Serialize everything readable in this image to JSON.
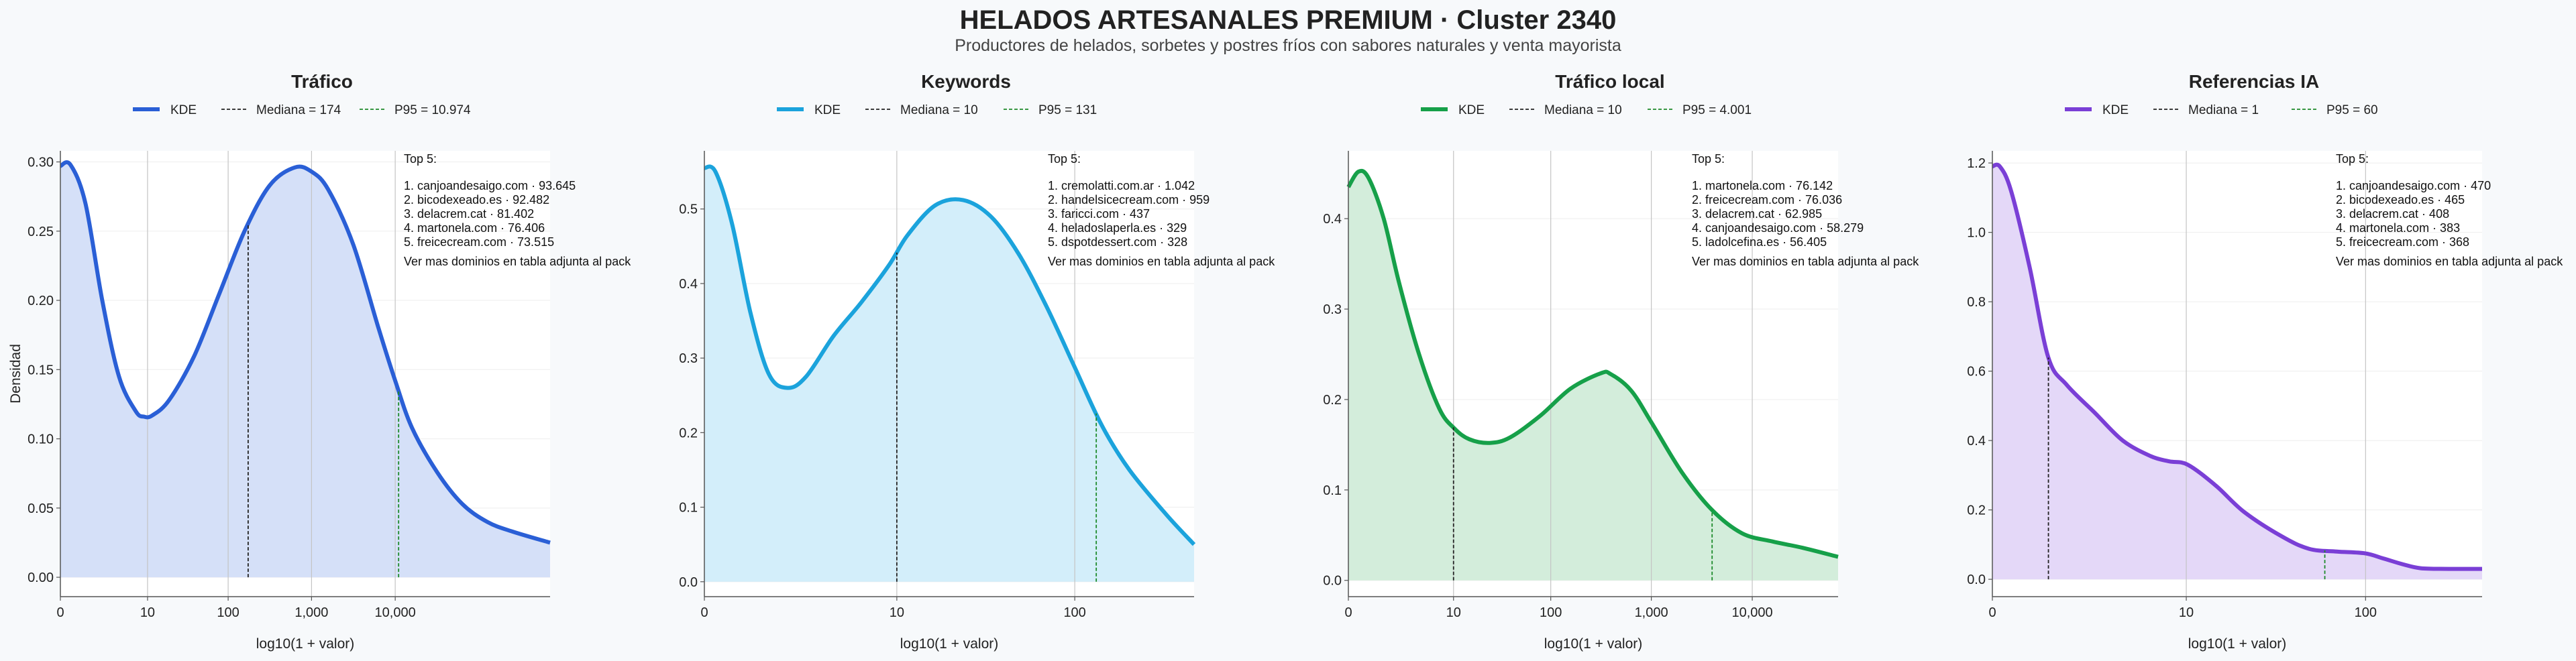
{
  "header": {
    "title": "HELADOS ARTESANALES PREMIUM · Cluster 2340",
    "subtitle": "Productores de helados, sorbetes y postres fríos con sabores naturales y venta mayorista"
  },
  "shared": {
    "x_axis_label": "log10(1 + valor)",
    "y_axis_label": "Densidad",
    "legend_kde": "KDE",
    "top5_title": "Top 5:",
    "footnote": "Ver mas dominios en tabla adjunta al pack"
  },
  "chart_data": [
    {
      "type": "area",
      "title": "Tráfico",
      "color": "#2a5fd6",
      "fill": "#d5e0f8",
      "median_label": "Mediana = 174",
      "p95_label": "P95 = 10.974",
      "median_value": 174,
      "p95_value": 10974,
      "xlim": [
        0,
        5.85
      ],
      "x_ticks": [
        {
          "v": 0,
          "label": "0"
        },
        {
          "v": 1.0414,
          "label": "10"
        },
        {
          "v": 2.0043,
          "label": "100"
        },
        {
          "v": 3.0004,
          "label": "1,000"
        },
        {
          "v": 4.0,
          "label": "10,000"
        }
      ],
      "ylim": [
        -0.014,
        0.308
      ],
      "y_ticks": [
        0.0,
        0.05,
        0.1,
        0.15,
        0.2,
        0.25,
        0.3
      ],
      "y_tick_labels": [
        "0.00",
        "0.05",
        "0.10",
        "0.15",
        "0.20",
        "0.25",
        "0.30"
      ],
      "x": [
        0,
        0.12,
        0.3,
        0.5,
        0.7,
        0.9,
        1.0,
        1.1,
        1.3,
        1.6,
        1.9,
        2.2,
        2.5,
        2.8,
        3.0,
        3.2,
        3.5,
        3.8,
        4.0,
        4.2,
        4.5,
        4.8,
        5.1,
        5.4,
        5.85
      ],
      "y": [
        0.297,
        0.298,
        0.27,
        0.2,
        0.145,
        0.12,
        0.116,
        0.117,
        0.128,
        0.16,
        0.205,
        0.25,
        0.283,
        0.296,
        0.293,
        0.28,
        0.24,
        0.18,
        0.142,
        0.108,
        0.076,
        0.053,
        0.04,
        0.033,
        0.025
      ],
      "top5": [
        "1. canjoandesaigo.com · 93.645",
        "2. bicodexeado.es · 92.482",
        "3. delacrem.cat · 81.402",
        "4. martonela.com · 76.406",
        "5. freicecream.com · 73.515"
      ]
    },
    {
      "type": "area",
      "title": "Keywords",
      "color": "#1ba3dc",
      "fill": "#d3eefa",
      "median_label": "Mediana = 10",
      "p95_label": "P95 = 131",
      "median_value": 10,
      "p95_value": 131,
      "xlim": [
        0,
        2.65
      ],
      "x_ticks": [
        {
          "v": 0,
          "label": "0"
        },
        {
          "v": 1.0414,
          "label": "10"
        },
        {
          "v": 2.0043,
          "label": "100"
        }
      ],
      "ylim": [
        -0.02,
        0.578
      ],
      "y_ticks": [
        0.0,
        0.1,
        0.2,
        0.3,
        0.4,
        0.5
      ],
      "y_tick_labels": [
        "0.0",
        "0.1",
        "0.2",
        "0.3",
        "0.4",
        "0.5"
      ],
      "x": [
        0,
        0.06,
        0.15,
        0.25,
        0.35,
        0.45,
        0.55,
        0.7,
        0.85,
        1.0,
        1.1,
        1.25,
        1.4,
        1.55,
        1.7,
        1.85,
        2.0,
        2.15,
        2.3,
        2.5,
        2.65
      ],
      "y": [
        0.555,
        0.55,
        0.48,
        0.36,
        0.278,
        0.26,
        0.275,
        0.33,
        0.375,
        0.425,
        0.465,
        0.505,
        0.512,
        0.49,
        0.44,
        0.37,
        0.29,
        0.21,
        0.15,
        0.09,
        0.05
      ],
      "top5": [
        "1. cremolatti.com.ar · 1.042",
        "2. handelsicecream.com · 959",
        "3. faricci.com · 437",
        "4. heladoslaperla.es · 329",
        "5. dspotdessert.com · 328"
      ]
    },
    {
      "type": "area",
      "title": "Tráfico local",
      "color": "#16a049",
      "fill": "#d3eddb",
      "median_label": "Mediana = 10",
      "p95_label": "P95 = 4.001",
      "median_value": 10,
      "p95_value": 4001,
      "xlim": [
        0,
        4.85
      ],
      "x_ticks": [
        {
          "v": 0,
          "label": "0"
        },
        {
          "v": 1.0414,
          "label": "10"
        },
        {
          "v": 2.0043,
          "label": "100"
        },
        {
          "v": 3.0004,
          "label": "1,000"
        },
        {
          "v": 4.0,
          "label": "10,000"
        }
      ],
      "ylim": [
        -0.018,
        0.475
      ],
      "y_ticks": [
        0.0,
        0.1,
        0.2,
        0.3,
        0.4
      ],
      "y_tick_labels": [
        "0.0",
        "0.1",
        "0.2",
        "0.3",
        "0.4"
      ],
      "x": [
        0,
        0.1,
        0.2,
        0.35,
        0.5,
        0.7,
        0.9,
        1.05,
        1.2,
        1.4,
        1.6,
        1.9,
        2.2,
        2.5,
        2.6,
        2.8,
        3.0,
        3.3,
        3.6,
        3.9,
        4.2,
        4.5,
        4.85
      ],
      "y": [
        0.435,
        0.452,
        0.445,
        0.4,
        0.33,
        0.25,
        0.19,
        0.168,
        0.156,
        0.152,
        0.158,
        0.182,
        0.212,
        0.229,
        0.228,
        0.21,
        0.175,
        0.12,
        0.078,
        0.052,
        0.043,
        0.036,
        0.026
      ],
      "top5": [
        "1. martonela.com · 76.142",
        "2. freicecream.com · 76.036",
        "3. delacrem.cat · 62.985",
        "4. canjoandesaigo.com · 58.279",
        "5. ladolcefina.es · 56.405"
      ]
    },
    {
      "type": "area",
      "title": "Referencias IA",
      "color": "#7a3fd6",
      "fill": "#e4d8f8",
      "median_label": "Mediana = 1",
      "p95_label": "P95 = 60",
      "median_value": 1,
      "p95_value": 60,
      "xlim": [
        0,
        2.63
      ],
      "x_ticks": [
        {
          "v": 0,
          "label": "0"
        },
        {
          "v": 1.0414,
          "label": "10"
        },
        {
          "v": 2.0043,
          "label": "100"
        }
      ],
      "ylim": [
        -0.05,
        1.235
      ],
      "y_ticks": [
        0.0,
        0.2,
        0.4,
        0.6,
        0.8,
        1.0,
        1.2
      ],
      "y_tick_labels": [
        "0.0",
        "0.2",
        "0.4",
        "0.6",
        "0.8",
        "1.0",
        "1.2"
      ],
      "x": [
        0,
        0.04,
        0.1,
        0.2,
        0.3,
        0.4,
        0.55,
        0.7,
        0.85,
        0.95,
        1.05,
        1.2,
        1.35,
        1.55,
        1.7,
        1.85,
        2.0,
        2.1,
        2.2,
        2.3,
        2.45,
        2.63
      ],
      "y": [
        1.19,
        1.19,
        1.12,
        0.9,
        0.64,
        0.56,
        0.48,
        0.4,
        0.355,
        0.34,
        0.33,
        0.27,
        0.195,
        0.125,
        0.088,
        0.08,
        0.075,
        0.06,
        0.044,
        0.032,
        0.03,
        0.03
      ],
      "top5": [
        "1. canjoandesaigo.com · 470",
        "2. bicodexeado.es · 465",
        "3. delacrem.cat · 408",
        "4. martonela.com · 383",
        "5. freicecream.com · 368"
      ]
    }
  ]
}
